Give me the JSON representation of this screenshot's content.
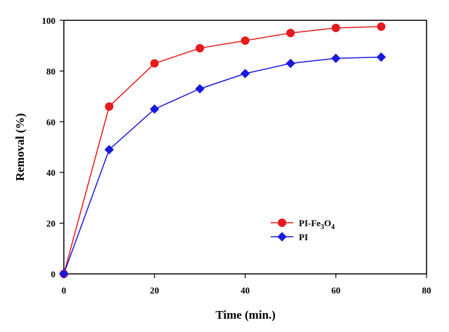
{
  "chart_data": {
    "type": "line",
    "xlabel": "Time (min.)",
    "ylabel": "Removal (%)",
    "xlim": [
      0,
      80
    ],
    "ylim": [
      0,
      100
    ],
    "xticks": [
      0,
      20,
      40,
      60,
      80
    ],
    "yticks": [
      0,
      20,
      40,
      60,
      80,
      100
    ],
    "grid": false,
    "legend_position": "lower-right inside plot",
    "x": [
      0,
      10,
      20,
      30,
      40,
      50,
      60,
      70
    ],
    "series": [
      {
        "name": "PI-Fe3O4",
        "name_parts": [
          "PI-Fe",
          "3",
          "O",
          "4"
        ],
        "values": [
          0,
          66,
          83,
          89,
          92,
          95,
          97,
          97.5
        ],
        "color": "#e41a1c",
        "marker": "circle"
      },
      {
        "name": "PI",
        "values": [
          0,
          49,
          65,
          73,
          79,
          83,
          85,
          85.5
        ],
        "color": "#1a1adc",
        "marker": "diamond"
      }
    ]
  }
}
